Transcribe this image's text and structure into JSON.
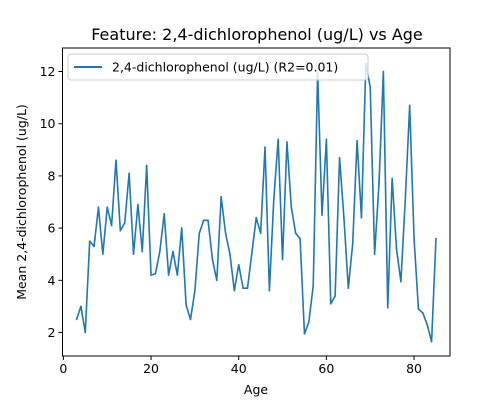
{
  "chart_data": {
    "type": "line",
    "title": "Feature: 2,4-dichlorophenol (ug/L) vs Age",
    "xlabel": "Age",
    "ylabel": "Mean 2,4-dichlorophenol (ug/L)",
    "xlim": [
      -0.2,
      88.2
    ],
    "ylim": [
      1.1,
      12.9
    ],
    "xticks": [
      0,
      20,
      40,
      60,
      80
    ],
    "yticks": [
      2,
      4,
      6,
      8,
      10,
      12
    ],
    "grid": false,
    "legend_position": "top-left",
    "series": [
      {
        "name": "2,4-dichlorophenol (ug/L) (R2=0.01)",
        "color": "#1f77b4",
        "x": [
          3,
          4,
          5,
          6,
          7,
          8,
          9,
          10,
          11,
          12,
          13,
          14,
          15,
          16,
          17,
          18,
          19,
          20,
          21,
          22,
          23,
          24,
          25,
          26,
          27,
          28,
          29,
          30,
          31,
          32,
          33,
          34,
          35,
          36,
          37,
          38,
          39,
          40,
          41,
          42,
          43,
          44,
          45,
          46,
          47,
          48,
          49,
          50,
          51,
          52,
          53,
          54,
          55,
          56,
          57,
          58,
          59,
          60,
          61,
          62,
          63,
          64,
          65,
          66,
          67,
          68,
          69,
          70,
          71,
          72,
          73,
          74,
          75,
          76,
          77,
          78,
          79,
          80,
          81,
          82,
          83,
          84,
          85
        ],
        "y": [
          2.5,
          3.0,
          2.0,
          5.5,
          5.3,
          6.8,
          5.0,
          6.8,
          6.1,
          8.6,
          5.9,
          6.2,
          8.1,
          5.0,
          6.9,
          5.1,
          8.4,
          4.2,
          4.25,
          5.1,
          6.55,
          4.2,
          5.1,
          4.2,
          6.0,
          3.05,
          2.5,
          3.6,
          5.8,
          6.3,
          6.3,
          4.8,
          4.0,
          7.2,
          5.8,
          5.0,
          3.6,
          4.6,
          3.7,
          3.7,
          5.05,
          6.4,
          5.8,
          9.1,
          3.6,
          7.1,
          9.4,
          4.8,
          9.3,
          6.8,
          5.8,
          5.6,
          1.95,
          2.4,
          3.8,
          12.0,
          6.5,
          9.4,
          3.1,
          3.4,
          8.7,
          6.4,
          3.7,
          5.4,
          9.35,
          6.4,
          12.3,
          11.4,
          5.0,
          7.7,
          12.0,
          2.95,
          7.9,
          5.2,
          3.95,
          7.1,
          10.7,
          5.6,
          2.9,
          2.75,
          2.3,
          1.65,
          5.6
        ]
      }
    ]
  }
}
